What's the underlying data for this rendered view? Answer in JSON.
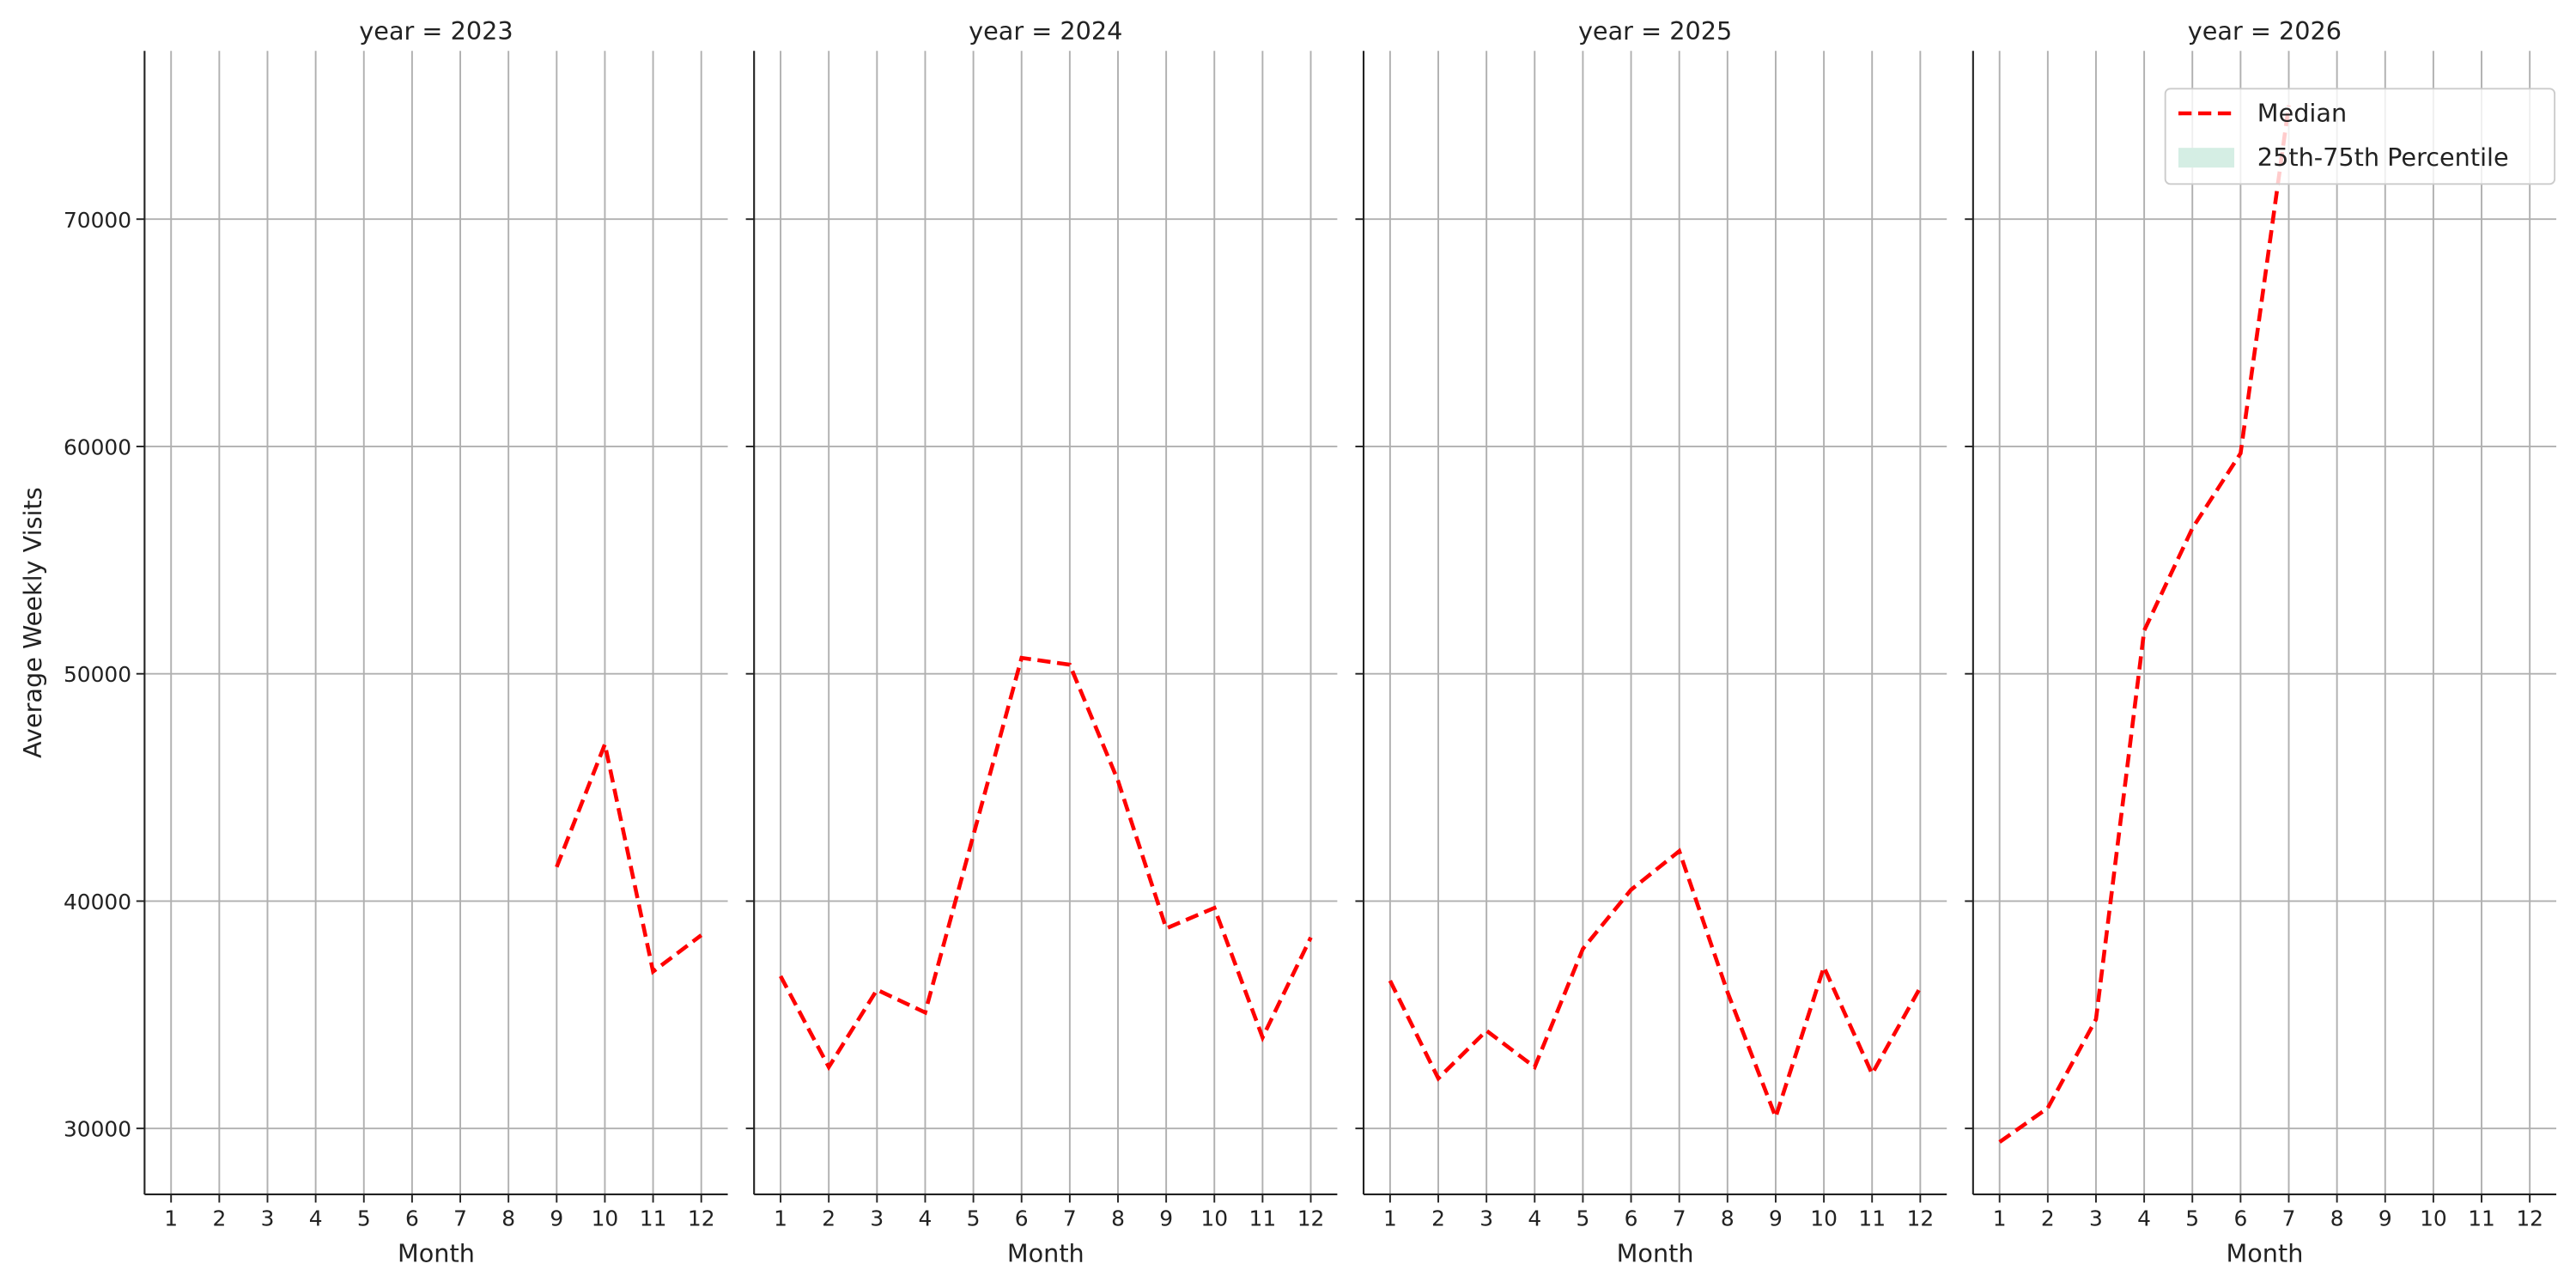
{
  "chart_data": [
    {
      "type": "line",
      "title": "year = 2023",
      "xlabel": "Month",
      "ylabel": "Average Weekly Visits",
      "x": [
        1,
        2,
        3,
        4,
        5,
        6,
        7,
        8,
        9,
        10,
        11,
        12
      ],
      "xlim": [
        0.45,
        12.55
      ],
      "xticks": [
        1,
        2,
        3,
        4,
        5,
        6,
        7,
        8,
        9,
        10,
        11,
        12
      ],
      "ylim": [
        27100,
        77400
      ],
      "yticks": [
        30000,
        40000,
        50000,
        60000,
        70000
      ],
      "grid": true,
      "series": [
        {
          "name": "Median",
          "color": "#ff0000",
          "values": [
            null,
            null,
            null,
            null,
            null,
            null,
            null,
            null,
            41500,
            46900,
            36900,
            38500
          ]
        }
      ]
    },
    {
      "type": "line",
      "title": "year = 2024",
      "xlabel": "Month",
      "x": [
        1,
        2,
        3,
        4,
        5,
        6,
        7,
        8,
        9,
        10,
        11,
        12
      ],
      "xlim": [
        0.45,
        12.55
      ],
      "xticks": [
        1,
        2,
        3,
        4,
        5,
        6,
        7,
        8,
        9,
        10,
        11,
        12
      ],
      "ylim": [
        27100,
        77400
      ],
      "yticks": [
        30000,
        40000,
        50000,
        60000,
        70000
      ],
      "grid": true,
      "series": [
        {
          "name": "Median",
          "color": "#ff0000",
          "values": [
            36700,
            32700,
            36100,
            35100,
            42900,
            50700,
            50400,
            45300,
            38800,
            39700,
            34000,
            38400
          ]
        }
      ]
    },
    {
      "type": "line",
      "title": "year = 2025",
      "xlabel": "Month",
      "x": [
        1,
        2,
        3,
        4,
        5,
        6,
        7,
        8,
        9,
        10,
        11,
        12
      ],
      "xlim": [
        0.45,
        12.55
      ],
      "xticks": [
        1,
        2,
        3,
        4,
        5,
        6,
        7,
        8,
        9,
        10,
        11,
        12
      ],
      "ylim": [
        27100,
        77400
      ],
      "yticks": [
        30000,
        40000,
        50000,
        60000,
        70000
      ],
      "grid": true,
      "series": [
        {
          "name": "Median",
          "color": "#ff0000",
          "values": [
            36500,
            32200,
            34300,
            32700,
            37900,
            40500,
            42200,
            36000,
            30500,
            37100,
            32400,
            36200
          ]
        }
      ]
    },
    {
      "type": "line",
      "title": "year = 2026",
      "xlabel": "Month",
      "x": [
        1,
        2,
        3,
        4,
        5,
        6,
        7,
        8,
        9,
        10,
        11,
        12
      ],
      "xlim": [
        0.45,
        12.55
      ],
      "xticks": [
        1,
        2,
        3,
        4,
        5,
        6,
        7,
        8,
        9,
        10,
        11,
        12
      ],
      "ylim": [
        27100,
        77400
      ],
      "yticks": [
        30000,
        40000,
        50000,
        60000,
        70000
      ],
      "grid": true,
      "legend": "upper right",
      "series": [
        {
          "name": "Median",
          "color": "#ff0000",
          "values": [
            29400,
            30900,
            34800,
            51900,
            56400,
            59700,
            75000,
            null,
            null,
            null,
            null,
            null
          ]
        },
        {
          "name": "25th-75th Percentile",
          "color": "#d5eee4",
          "type": "band"
        }
      ]
    }
  ]
}
